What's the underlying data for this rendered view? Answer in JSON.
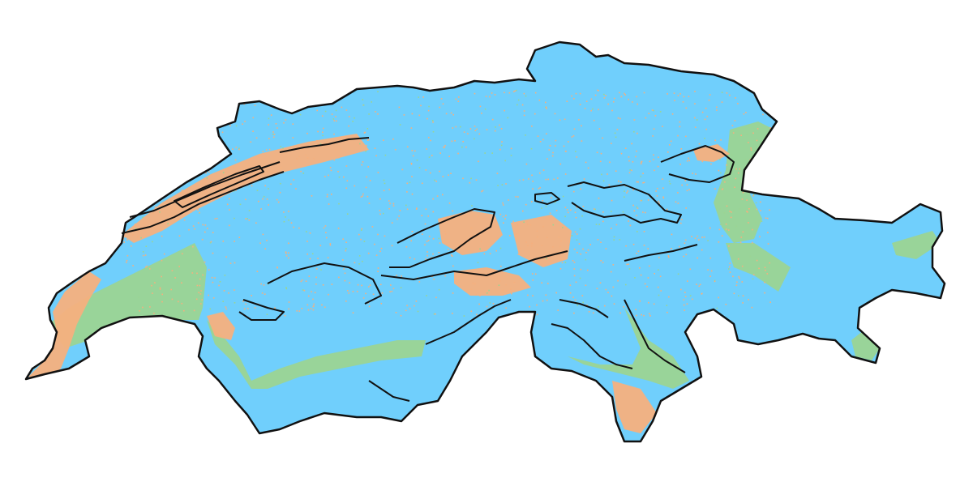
{
  "map": {
    "type": "choropleth-raster",
    "region": "Switzerland",
    "colors": {
      "background": "#ffffff",
      "base": "#70cffc",
      "orange": "#f5b07e",
      "green": "#9bd493",
      "outline": "#111111"
    },
    "legend": "none",
    "labels": "none"
  }
}
